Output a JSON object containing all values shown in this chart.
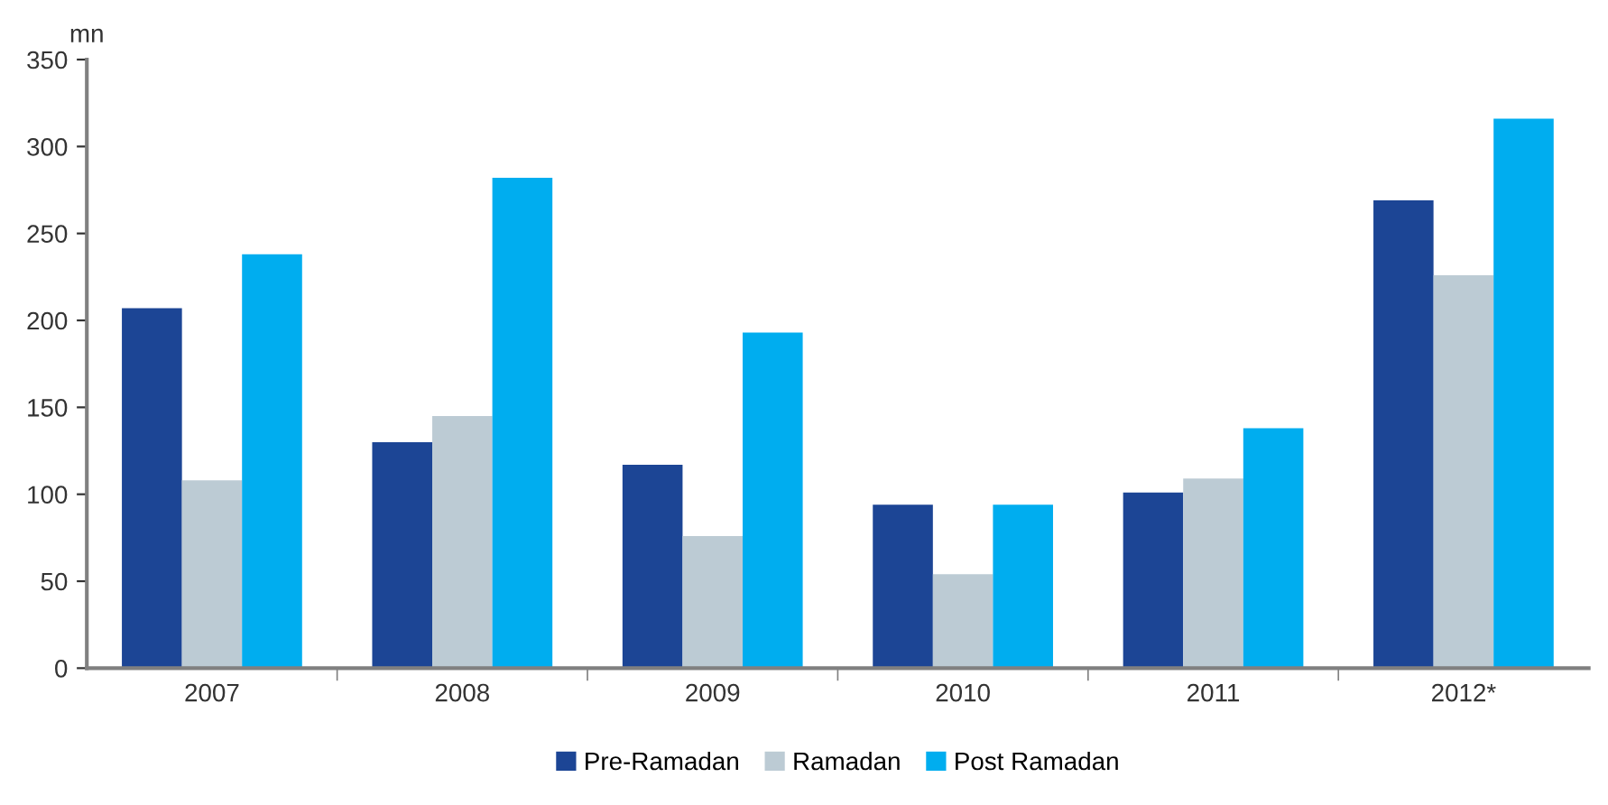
{
  "chart_data": {
    "type": "bar",
    "ylabel": "mn",
    "categories": [
      "2007",
      "2008",
      "2009",
      "2010",
      "2011",
      "2012*"
    ],
    "series": [
      {
        "name": "Pre-Ramadan",
        "color": "#1c4595",
        "values": [
          207,
          130,
          117,
          94,
          101,
          269
        ]
      },
      {
        "name": "Ramadan",
        "color": "#bccbd4",
        "values": [
          108,
          145,
          76,
          54,
          109,
          226
        ]
      },
      {
        "name": "Post Ramadan",
        "color": "#00adef",
        "values": [
          238,
          282,
          193,
          94,
          138,
          316
        ]
      }
    ],
    "ylim": [
      0,
      350
    ],
    "yticks": [
      0,
      50,
      100,
      150,
      200,
      250,
      300,
      350
    ],
    "grid": false,
    "legend": "bottom"
  }
}
